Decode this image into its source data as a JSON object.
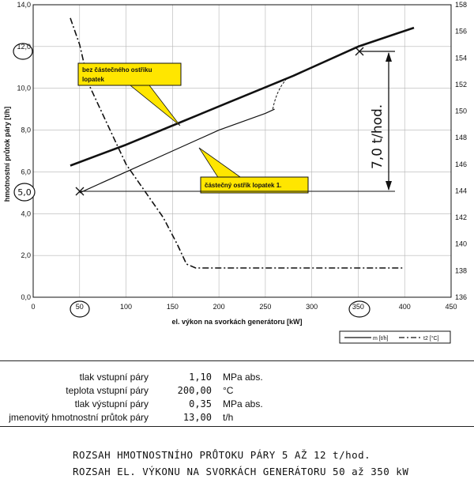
{
  "chart_data": {
    "type": "line",
    "xlabel": "el. výkon na svorkách generátoru [kW]",
    "ylabel": "hmotnostní průtok páry [t/h]",
    "xlim": [
      0,
      450
    ],
    "ylim": [
      0,
      14
    ],
    "y2lim": [
      136,
      158
    ],
    "x_ticks": [
      "0",
      "50",
      "100",
      "150",
      "200",
      "250",
      "300",
      "350",
      "400",
      "450"
    ],
    "y_ticks": [
      "0,0",
      "2,0",
      "4,0",
      "6,0",
      "8,0",
      "10,0",
      "12,0",
      "14,0"
    ],
    "y2_ticks": [
      "136",
      "138",
      "140",
      "142",
      "144",
      "146",
      "148",
      "150",
      "152",
      "154",
      "156",
      "158"
    ],
    "grid": true,
    "legend_position": "bottom-right",
    "series": [
      {
        "name": "m [t/h]",
        "axis": "left",
        "style": "solid-thick",
        "x": [
          40,
          100,
          160,
          220,
          280,
          350,
          410
        ],
        "y": [
          6.3,
          7.3,
          8.4,
          9.5,
          10.6,
          12.0,
          12.9
        ]
      },
      {
        "name": "",
        "axis": "left",
        "style": "solid-thin",
        "x": [
          50,
          100,
          150,
          200,
          250,
          260
        ],
        "y": [
          5.0,
          6.0,
          7.0,
          8.0,
          8.8,
          9.0
        ]
      },
      {
        "name": "t2 [°C]",
        "axis": "right",
        "style": "dash-dot",
        "x": [
          40,
          50,
          60,
          80,
          100,
          120,
          140,
          155,
          165,
          175,
          400
        ],
        "y": [
          157,
          155,
          152,
          149,
          146,
          144,
          142,
          140,
          138.5,
          138.2,
          138.2
        ]
      }
    ],
    "annotations": {
      "callout_top": "bez částečného ostřiku lopatek",
      "callout_bottom": "částečný ostřik lopatek 1.",
      "handwritten_range": "7,0 t/hod.",
      "handwritten_y": "5,0"
    }
  },
  "parameters": [
    {
      "label": "tlak vstupní páry",
      "value": "1,10",
      "unit": "MPa abs."
    },
    {
      "label": "teplota vstupní páry",
      "value": "200,00",
      "unit": "°C"
    },
    {
      "label": "tlak výstupní páry",
      "value": "0,35",
      "unit": "MPa abs."
    },
    {
      "label": "jmenovitý hmotnostní průtok páry",
      "value": "13,00",
      "unit": "t/h"
    }
  ],
  "notes": [
    "ROZSAH HMOTNOSTNÍHO PRŮTOKU PÁRY 5 AŽ 12 t/hod.",
    "ROZSAH EL. VÝKONU NA SVORKÁCH GENERÁTORU 50 až 350 kW"
  ]
}
